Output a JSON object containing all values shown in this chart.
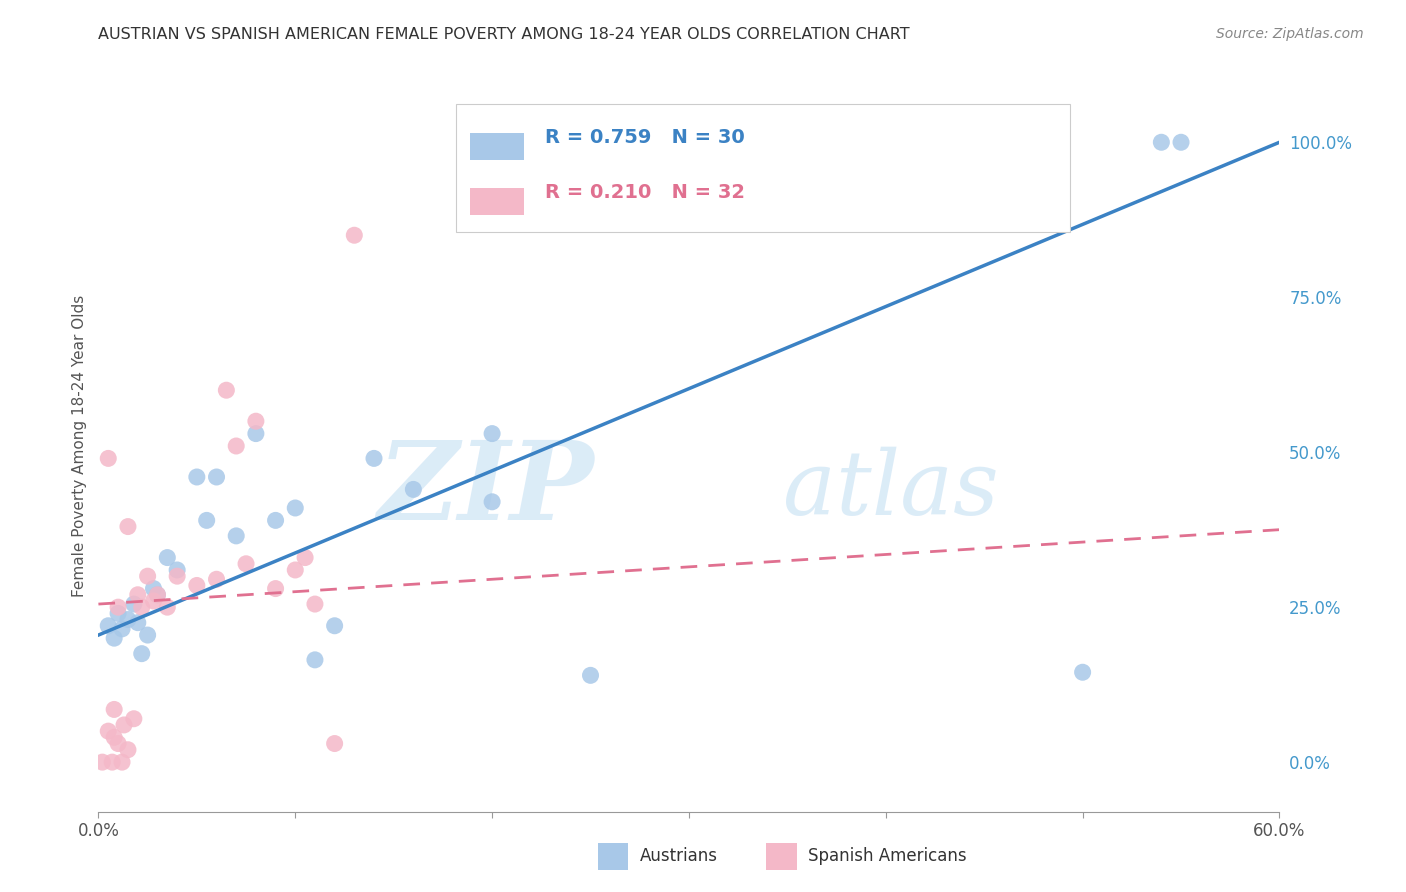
{
  "title": "AUSTRIAN VS SPANISH AMERICAN FEMALE POVERTY AMONG 18-24 YEAR OLDS CORRELATION CHART",
  "source": "Source: ZipAtlas.com",
  "ylabel": "Female Poverty Among 18-24 Year Olds",
  "xlim": [
    0.0,
    0.6
  ],
  "ylim": [
    -0.08,
    1.1
  ],
  "yticks_right": [
    0.0,
    0.25,
    0.5,
    0.75,
    1.0
  ],
  "yticklabels_right": [
    "0.0%",
    "25.0%",
    "50.0%",
    "75.0%",
    "100.0%"
  ],
  "legend_R_blue": "R = 0.759",
  "legend_N_blue": "N = 30",
  "legend_R_pink": "R = 0.210",
  "legend_N_pink": "N = 32",
  "watermark_zip": "ZIP",
  "watermark_atlas": "atlas",
  "bg_color": "#ffffff",
  "grid_color": "#cccccc",
  "blue_scatter_color": "#a8c8e8",
  "blue_line_color": "#3b82c4",
  "pink_scatter_color": "#f4b8c8",
  "pink_line_color": "#e07090",
  "blue_scatter_x": [
    0.005,
    0.008,
    0.01,
    0.012,
    0.015,
    0.018,
    0.02,
    0.022,
    0.025,
    0.028,
    0.03,
    0.035,
    0.04,
    0.05,
    0.055,
    0.06,
    0.07,
    0.08,
    0.09,
    0.1,
    0.11,
    0.12,
    0.14,
    0.16,
    0.2,
    0.2,
    0.25,
    0.5,
    0.54,
    0.55
  ],
  "blue_scatter_y": [
    0.22,
    0.2,
    0.24,
    0.215,
    0.23,
    0.255,
    0.225,
    0.175,
    0.205,
    0.28,
    0.27,
    0.33,
    0.31,
    0.46,
    0.39,
    0.46,
    0.365,
    0.53,
    0.39,
    0.41,
    0.165,
    0.22,
    0.49,
    0.44,
    0.53,
    0.42,
    0.14,
    0.145,
    1.0,
    1.0
  ],
  "pink_scatter_x": [
    0.002,
    0.005,
    0.007,
    0.008,
    0.01,
    0.01,
    0.012,
    0.013,
    0.015,
    0.015,
    0.018,
    0.02,
    0.022,
    0.025,
    0.028,
    0.03,
    0.035,
    0.04,
    0.05,
    0.06,
    0.065,
    0.07,
    0.075,
    0.08,
    0.09,
    0.1,
    0.105,
    0.11,
    0.12,
    0.13,
    0.005,
    0.008
  ],
  "pink_scatter_y": [
    0.0,
    0.05,
    0.0,
    0.04,
    0.03,
    0.25,
    0.0,
    0.06,
    0.02,
    0.38,
    0.07,
    0.27,
    0.25,
    0.3,
    0.26,
    0.27,
    0.25,
    0.3,
    0.285,
    0.295,
    0.6,
    0.51,
    0.32,
    0.55,
    0.28,
    0.31,
    0.33,
    0.255,
    0.03,
    0.85,
    0.49,
    0.085
  ],
  "blue_line_x0": 0.0,
  "blue_line_y0": 0.205,
  "blue_line_x1": 0.6,
  "blue_line_y1": 1.0,
  "pink_line_x0": 0.0,
  "pink_line_y0": 0.255,
  "pink_line_x1": 0.6,
  "pink_line_y1": 0.375
}
